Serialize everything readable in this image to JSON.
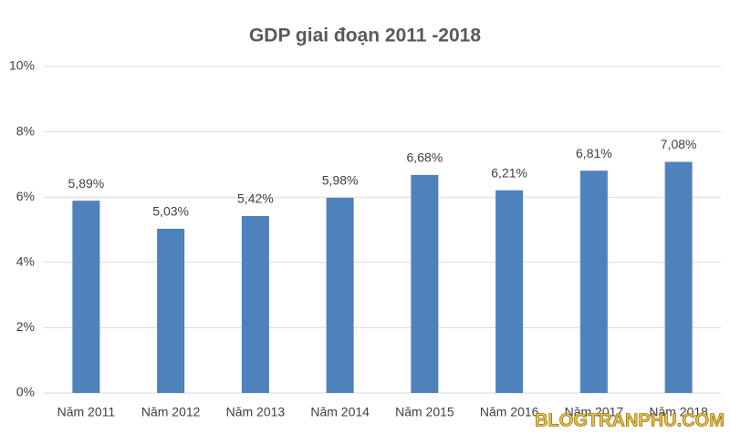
{
  "chart_data": {
    "type": "bar",
    "title": "GDP giai đoạn 2011 -2018",
    "categories": [
      "Năm 2011",
      "Năm 2012",
      "Năm 2013",
      "Năm 2014",
      "Năm 2015",
      "Năm 2016",
      "Năm 2017",
      "Năm 2018"
    ],
    "values": [
      5.89,
      5.03,
      5.42,
      5.98,
      6.68,
      6.21,
      6.81,
      7.08
    ],
    "value_labels": [
      "5,89%",
      "5,03%",
      "5,42%",
      "5,98%",
      "6,68%",
      "6,21%",
      "6,81%",
      "7,08%"
    ],
    "color": "#4f81bd",
    "ylim": [
      0,
      10
    ],
    "yticks": [
      {
        "value": 0,
        "label": "0%"
      },
      {
        "value": 2,
        "label": "2%"
      },
      {
        "value": 4,
        "label": "4%"
      },
      {
        "value": 6,
        "label": "6%"
      },
      {
        "value": 8,
        "label": "8%"
      },
      {
        "value": 10,
        "label": "10%"
      }
    ],
    "grid": true,
    "watermark": "BLOGTRANPHU.COM"
  }
}
